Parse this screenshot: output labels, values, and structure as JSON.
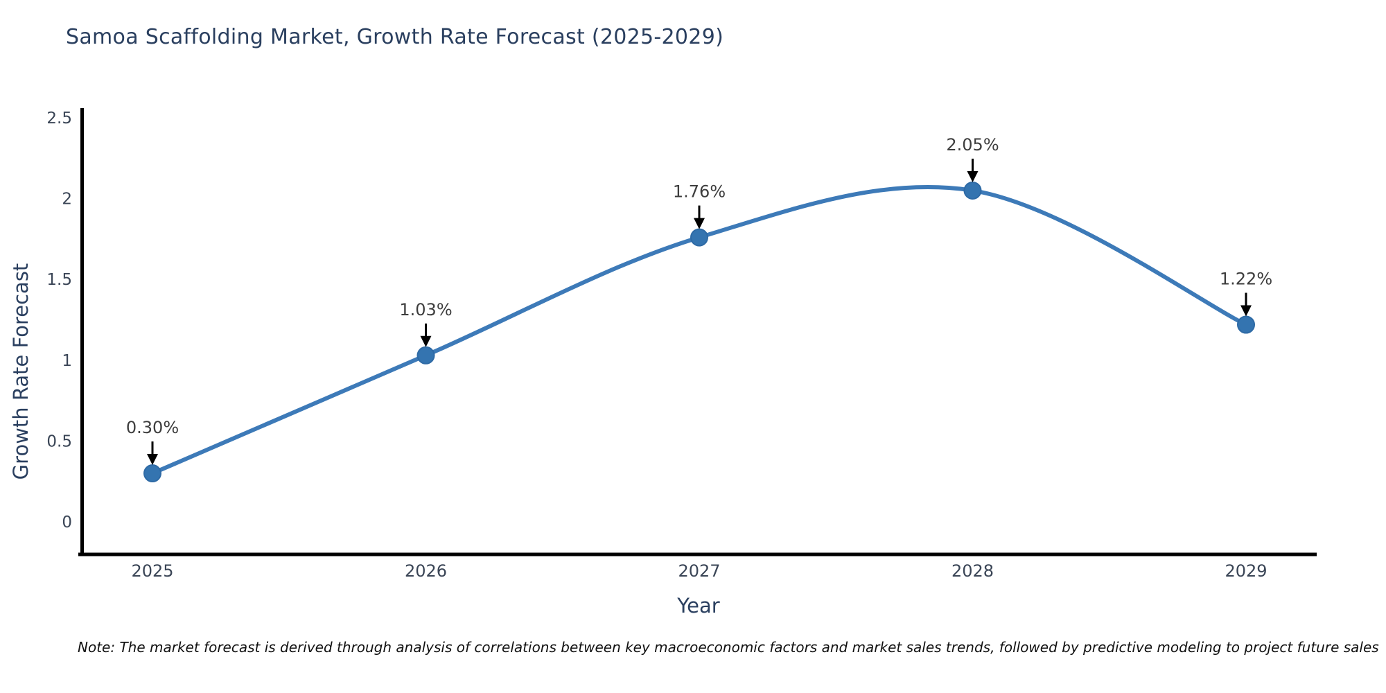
{
  "title": "Samoa Scaffolding Market, Growth Rate Forecast (2025-2029)",
  "note": "Note: The market forecast is derived through analysis of correlations between key macroeconomic factors and market sales trends, followed by predictive modeling to project future sales",
  "chart_data": {
    "type": "line",
    "title": "Samoa Scaffolding Market, Growth Rate Forecast (2025-2029)",
    "xlabel": "Year",
    "ylabel": "Growth Rate Forecast",
    "x": [
      2025,
      2026,
      2027,
      2028,
      2029
    ],
    "values": [
      0.3,
      1.03,
      1.76,
      2.05,
      1.22
    ],
    "point_labels": [
      "0.30%",
      "1.03%",
      "1.76%",
      "2.05%",
      "1.22%"
    ],
    "xticks": [
      "2025",
      "2026",
      "2027",
      "2028",
      "2029"
    ],
    "yticks": [
      "0",
      "0.5",
      "1",
      "1.5",
      "2",
      "2.5"
    ],
    "ytick_values": [
      0,
      0.5,
      1,
      1.5,
      2,
      2.5
    ],
    "ylim": [
      -0.2,
      2.55
    ],
    "grid": false,
    "legend": "none",
    "smooth_line": true,
    "colors": {
      "line": "#3d7ab8",
      "marker": "#3474b0",
      "marker_edge": "#2e6aa5",
      "axis": "#000000",
      "arrow": "#000000",
      "annotation_text": "#3d3d3d",
      "tick_text": "#3a4556",
      "title_text": "#2a3f5f"
    }
  }
}
